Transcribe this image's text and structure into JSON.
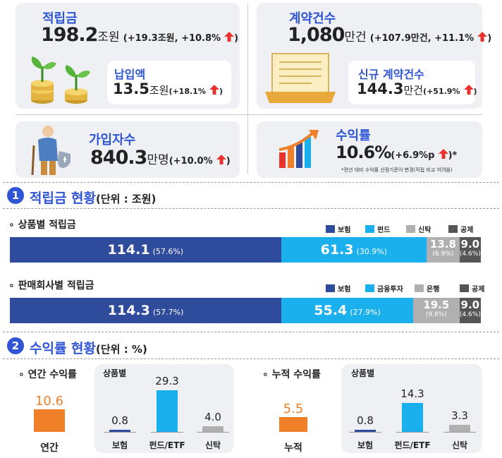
{
  "top_cards": {
    "accumulated": {
      "title": "적립금",
      "value": "198.2",
      "unit": "조원",
      "change": "(+19.3조원, +10.8%",
      "close": ")"
    },
    "payment": {
      "title": "납입액",
      "value": "13.5",
      "unit": "조원",
      "change": "(+18.1%",
      "close": ")"
    },
    "contracts": {
      "title": "계약건수",
      "value": "1,080",
      "unit": "만건",
      "change": "(+107.9만건, +11.1%",
      "close": ")"
    },
    "new_contracts": {
      "title": "신규 계약건수",
      "value": "144.3",
      "unit": "만건",
      "change": "(+51.9%",
      "close": ")"
    },
    "subscribers": {
      "title": "가입자수",
      "value": "840.3",
      "unit": "만명",
      "change": "(+10.0%",
      "close": ")"
    },
    "return_rate": {
      "title": "수익률",
      "value": "10.6%",
      "change": "(+6.9%p",
      "close": ")*",
      "note": "*전년 대비 수익률 산정기준이 변경(직접 비교 어려움)"
    }
  },
  "section1": {
    "num": "1",
    "title": "적립금 현황",
    "unit": "(단위 : 조원)"
  },
  "section2": {
    "num": "2",
    "title": "수익률 현황",
    "unit": "(단위 : %)"
  },
  "colors": {
    "navy": "#2f4b9c",
    "cyan": "#1ab0ee",
    "gray": "#b0b0b0",
    "dark": "#555555",
    "orange": "#f07f2a",
    "red": "#e8322b"
  },
  "chart_data": [
    {
      "type": "bar",
      "title": "상품별 적립금",
      "orientation": "horizontal-stacked",
      "series": [
        {
          "name": "보험",
          "value": 114.1,
          "label": "114.1",
          "pct": "(57.6%)"
        },
        {
          "name": "펀드",
          "value": 61.3,
          "label": "61.3",
          "pct": "(30.9%)"
        },
        {
          "name": "신탁",
          "value": 13.8,
          "label": "13.8",
          "pct": "(6.9%)"
        },
        {
          "name": "공제",
          "value": 9.0,
          "label": "9.0",
          "pct": "(4.6%)"
        }
      ]
    },
    {
      "type": "bar",
      "title": "판매회사별 적립금",
      "orientation": "horizontal-stacked",
      "series": [
        {
          "name": "보험",
          "value": 114.3,
          "label": "114.3",
          "pct": "(57.7%)"
        },
        {
          "name": "금융투자",
          "value": 55.4,
          "label": "55.4",
          "pct": "(27.9%)"
        },
        {
          "name": "은행",
          "value": 19.5,
          "label": "19.5",
          "pct": "(9.8%)"
        },
        {
          "name": "공제",
          "value": 9.0,
          "label": "9.0",
          "pct": "(4.6%)"
        }
      ]
    },
    {
      "type": "bar",
      "title": "연간 수익률",
      "categories": [
        "연간"
      ],
      "values": [
        10.6
      ]
    },
    {
      "type": "bar",
      "title": "상품별",
      "categories": [
        "보험",
        "펀드/ETF",
        "신탁"
      ],
      "values": [
        0.8,
        29.3,
        4.0
      ]
    },
    {
      "type": "bar",
      "title": "누적 수익률",
      "categories": [
        "누적"
      ],
      "values": [
        5.5
      ]
    },
    {
      "type": "bar",
      "title": "상품별",
      "categories": [
        "보험",
        "펀드/ETF",
        "신탁"
      ],
      "values": [
        0.8,
        14.3,
        3.3
      ]
    }
  ]
}
